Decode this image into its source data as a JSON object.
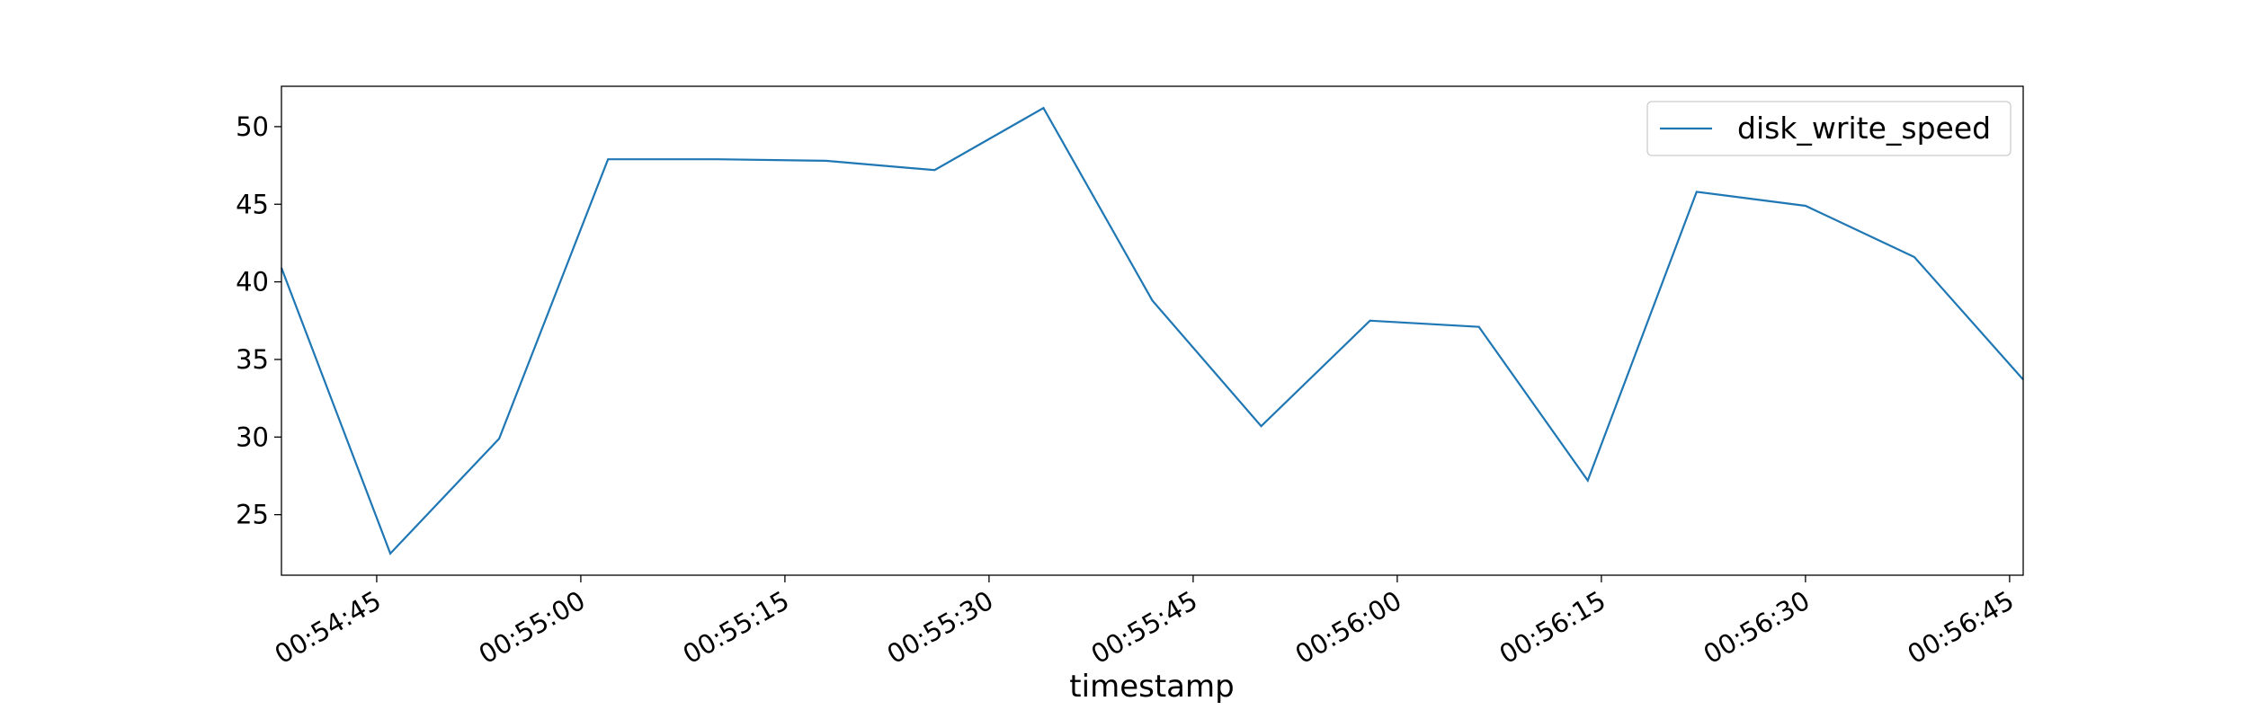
{
  "chart_data": {
    "type": "line",
    "x_label": "timestamp",
    "x": [
      "00:54:38",
      "00:54:46",
      "00:54:54",
      "00:55:02",
      "00:55:10",
      "00:55:18",
      "00:55:26",
      "00:55:34",
      "00:55:42",
      "00:55:50",
      "00:55:58",
      "00:56:06",
      "00:56:14",
      "00:56:22",
      "00:56:30",
      "00:56:38",
      "00:56:46"
    ],
    "series": [
      {
        "name": "disk_write_speed",
        "color": "#1f77b4",
        "values": [
          40.9,
          22.5,
          29.9,
          47.9,
          47.9,
          47.8,
          47.2,
          51.2,
          38.8,
          30.7,
          37.5,
          37.1,
          27.2,
          45.8,
          44.9,
          41.6,
          33.7
        ]
      }
    ],
    "xlim": [
      "00:54:38",
      "00:56:46"
    ],
    "xticks": [
      "00:54:45",
      "00:55:00",
      "00:55:15",
      "00:55:30",
      "00:55:45",
      "00:56:00",
      "00:56:15",
      "00:56:30",
      "00:56:45"
    ],
    "ylim": [
      21.1,
      52.6
    ],
    "yticks": [
      25,
      30,
      35,
      40,
      45,
      50
    ],
    "legend": "upper right",
    "grid": false
  }
}
